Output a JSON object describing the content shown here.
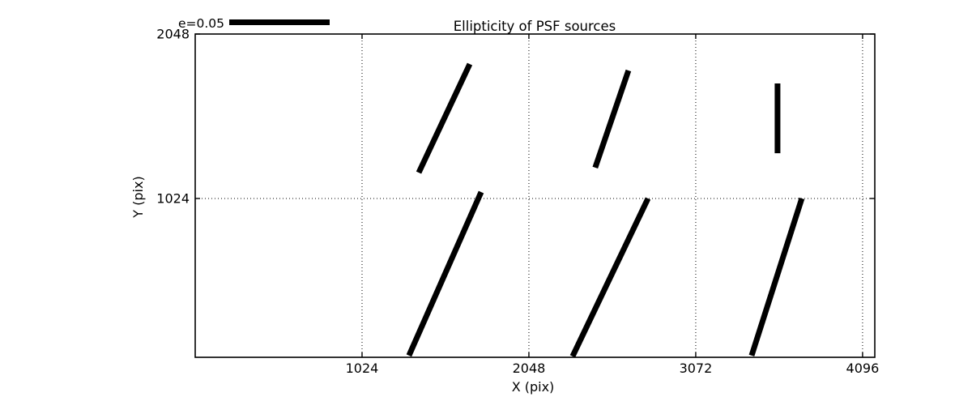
{
  "figure": {
    "background": "#ffffff",
    "foreground": "#000000"
  },
  "chart_data": {
    "type": "line",
    "subtype": "psf-ellipticity-whisker-plot",
    "title": "Ellipticity of PSF sources",
    "xlabel": "X (pix)",
    "ylabel": "Y (pix)",
    "xlim": [
      0,
      4171
    ],
    "ylim": [
      35,
      2048
    ],
    "xticks": [
      1024,
      2048,
      3072,
      4096
    ],
    "yticks": [
      1024,
      2048
    ],
    "grid": true,
    "grid_style": "dotted",
    "legend": {
      "label": "e=0.05",
      "scale_e": 0.05
    },
    "whisker_color": "#000000",
    "segments": [
      {
        "x1": 1372,
        "y1": 1185,
        "x2": 1685,
        "y2": 1861,
        "e": 0.06
      },
      {
        "x1": 2455,
        "y1": 1216,
        "x2": 2659,
        "y2": 1821,
        "e": 0.051
      },
      {
        "x1": 3574,
        "y1": 1306,
        "x2": 3574,
        "y2": 1740,
        "e": 0.035
      },
      {
        "x1": 1312,
        "y1": 46,
        "x2": 1755,
        "y2": 1064,
        "e": 0.089
      },
      {
        "x1": 2316,
        "y1": 41,
        "x2": 2779,
        "y2": 1024,
        "e": 0.087
      },
      {
        "x1": 3415,
        "y1": 46,
        "x2": 3723,
        "y2": 1024,
        "e": 0.082
      }
    ]
  }
}
